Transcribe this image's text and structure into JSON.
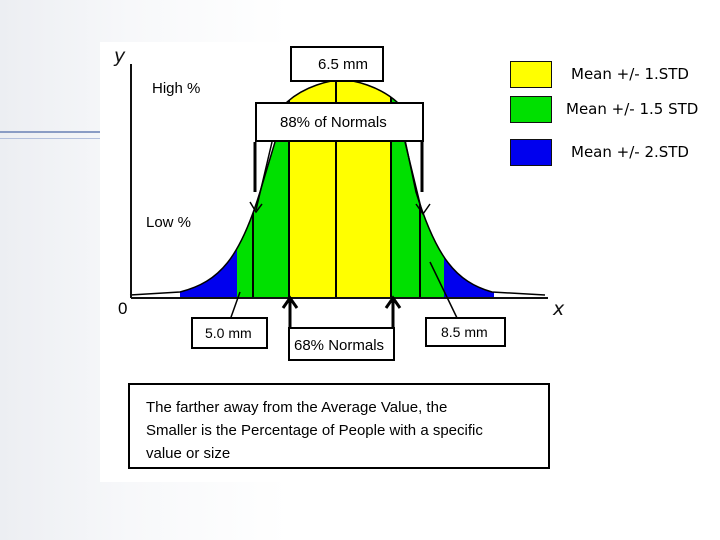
{
  "diagram": {
    "axis": {
      "y_letter": "y",
      "x_letter": "x",
      "origin": "0"
    },
    "labels": {
      "high": "High %",
      "low": "Low %",
      "peak_box": "6.5 mm",
      "band_88_box": "88% of Normals",
      "band_68_box": "68% Normals",
      "left_value_box": "5.0 mm",
      "right_value_box": "8.5 mm"
    },
    "caption": {
      "line1": "The farther away from the Average Value, the",
      "line2": "Smaller is the Percentage of People with a specific",
      "line3": "value or size"
    },
    "legend": [
      {
        "label": "Mean +/- 1.STD",
        "color": "#ffff00"
      },
      {
        "label": "Mean +/- 1.5 STD",
        "color": "#00e000"
      },
      {
        "label": "Mean +/- 2.STD",
        "color": "#0000ee"
      }
    ]
  }
}
